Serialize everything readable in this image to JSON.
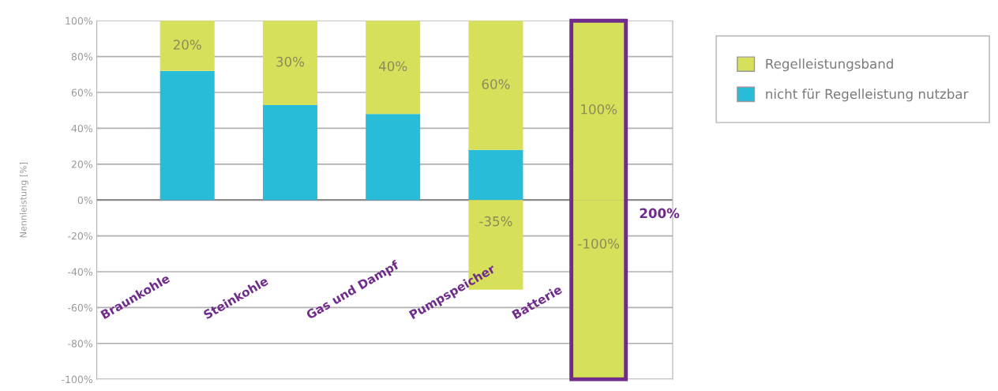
{
  "chart_data": {
    "type": "bar",
    "stacked": true,
    "ylabel": "Nennleistung [%]",
    "categories": [
      "Braunkohle",
      "Steinkohle",
      "Gas und Dampf",
      "Pumpspeicher",
      "Batterie"
    ],
    "series": [
      {
        "name": "nicht für Regelleistung nutzbar",
        "color": "#29bcd8",
        "values": [
          72,
          53,
          48,
          28,
          0
        ]
      },
      {
        "name": "Regelleistungsband",
        "color": "#d6e05a",
        "values": [
          28,
          47,
          52,
          72,
          100
        ]
      },
      {
        "color": "#d6e05a",
        "values": [
          null,
          null,
          null,
          -50,
          -100
        ]
      }
    ],
    "ylim": [
      -100,
      100
    ],
    "yticks": [
      {
        "value": -100,
        "label": "-100%"
      },
      {
        "value": -80,
        "label": "-80%"
      },
      {
        "value": -60,
        "label": "-60%"
      },
      {
        "value": -40,
        "label": "-40%"
      },
      {
        "value": -20,
        "label": "-20%"
      },
      {
        "value": 0,
        "label": "0%"
      },
      {
        "value": 20,
        "label": "20%"
      },
      {
        "value": 40,
        "label": "40%"
      },
      {
        "value": 60,
        "label": "60%"
      },
      {
        "value": 80,
        "label": "80%"
      },
      {
        "value": 100,
        "label": "100%"
      }
    ],
    "annotations": [
      "20%",
      "30%",
      "40%",
      "60%",
      "100%",
      "-35%",
      "-100%",
      "200%"
    ],
    "grid": "y",
    "legend": "top right"
  }
}
